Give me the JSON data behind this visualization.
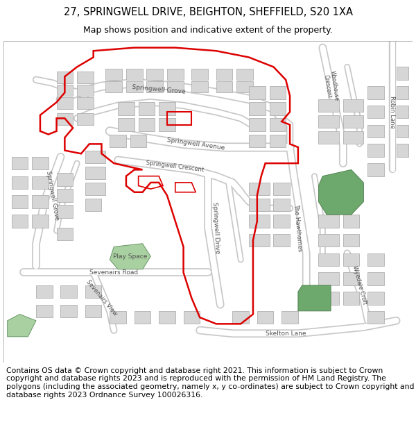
{
  "title_line1": "27, SPRINGWELL DRIVE, BEIGHTON, SHEFFIELD, S20 1XA",
  "title_line2": "Map shows position and indicative extent of the property.",
  "footer_text": "Contains OS data © Crown copyright and database right 2021. This information is subject to Crown copyright and database rights 2023 and is reproduced with the permission of HM Land Registry. The polygons (including the associated geometry, namely x, y co-ordinates) are subject to Crown copyright and database rights 2023 Ordnance Survey 100026316.",
  "map_bg": "#f2f0ed",
  "road_fill": "#ffffff",
  "road_edge": "#c8c8c8",
  "building_fill": "#d6d6d6",
  "building_edge": "#b0b0b0",
  "green_dark": "#6da86d",
  "green_light": "#a8d0a0",
  "red_line": "#dd0000",
  "title_fontsize": 10.5,
  "subtitle_fontsize": 9.0,
  "footer_fontsize": 7.8,
  "label_fontsize": 6.5
}
